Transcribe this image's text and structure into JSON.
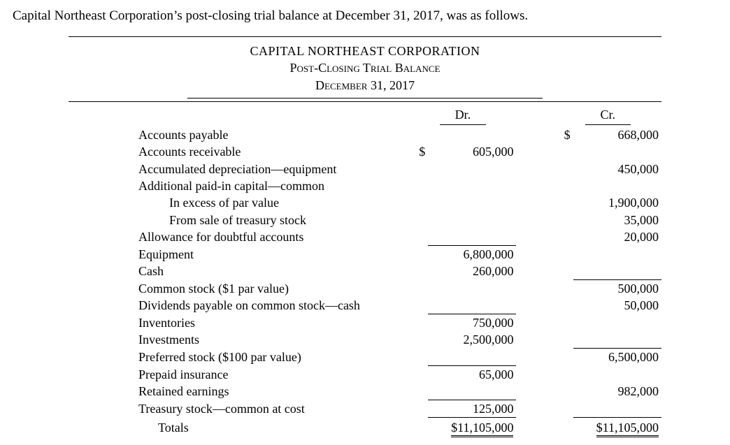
{
  "intro": "Capital Northeast Corporation’s post-closing trial balance at December 31, 2017, was as follows.",
  "header": {
    "company": "CAPITAL NORTHEAST CORPORATION",
    "title": "Post-Closing Trial Balance",
    "date": "December 31, 2017"
  },
  "columns": {
    "dr": "Dr.",
    "cr": "Cr."
  },
  "currency": "$",
  "rows": [
    {
      "name": "Accounts payable",
      "dr": "",
      "cr": "668,000",
      "cr_sym": true
    },
    {
      "name": "Accounts receivable",
      "dr": "605,000",
      "dr_sym": true,
      "cr": ""
    },
    {
      "name": "Accumulated depreciation—equipment",
      "dr": "",
      "cr": "450,000"
    },
    {
      "name": "Additional paid-in capital—common",
      "dr": "",
      "cr": ""
    },
    {
      "name": "In excess of par value",
      "indent": 2,
      "dr": "",
      "cr": "1,900,000"
    },
    {
      "name": "From sale of treasury stock",
      "indent": 2,
      "dr": "",
      "cr": "35,000"
    },
    {
      "name": "Allowance for doubtful accounts",
      "dr": "",
      "cr": "20,000"
    },
    {
      "name": "Equipment",
      "dr": "6,800,000",
      "cr": "",
      "section_above": true
    },
    {
      "name": "Cash",
      "dr": "260,000",
      "cr": ""
    },
    {
      "name": "Common stock ($1 par value)",
      "dr": "",
      "cr": "500,000",
      "section_above": true
    },
    {
      "name": "Dividends payable on common stock—cash",
      "dr": "",
      "cr": "50,000"
    },
    {
      "name": "Inventories",
      "dr": "750,000",
      "cr": "",
      "section_above": true
    },
    {
      "name": "Investments",
      "dr": "2,500,000",
      "cr": ""
    },
    {
      "name": "Preferred stock ($100 par value)",
      "dr": "",
      "cr": "6,500,000",
      "section_above": true
    },
    {
      "name": "Prepaid insurance",
      "dr": "65,000",
      "cr": "",
      "section_above": true
    },
    {
      "name": "Retained earnings",
      "dr": "",
      "cr": "982,000"
    },
    {
      "name": "Treasury stock—common at cost",
      "dr": "125,000",
      "cr": "",
      "section_above": true
    }
  ],
  "totals": {
    "label": "Totals",
    "dr": "$11,105,000",
    "cr": "$11,105,000"
  },
  "style": {
    "font_family": "Times New Roman, serif",
    "base_font_size_pt": 14,
    "text_color": "#000000",
    "background_color": "#ffffff",
    "rule_color": "#000000",
    "col_widths_pct": {
      "account": 54,
      "symbol": 3,
      "number": 14,
      "gap": 6
    },
    "double_underline_totals": true
  }
}
